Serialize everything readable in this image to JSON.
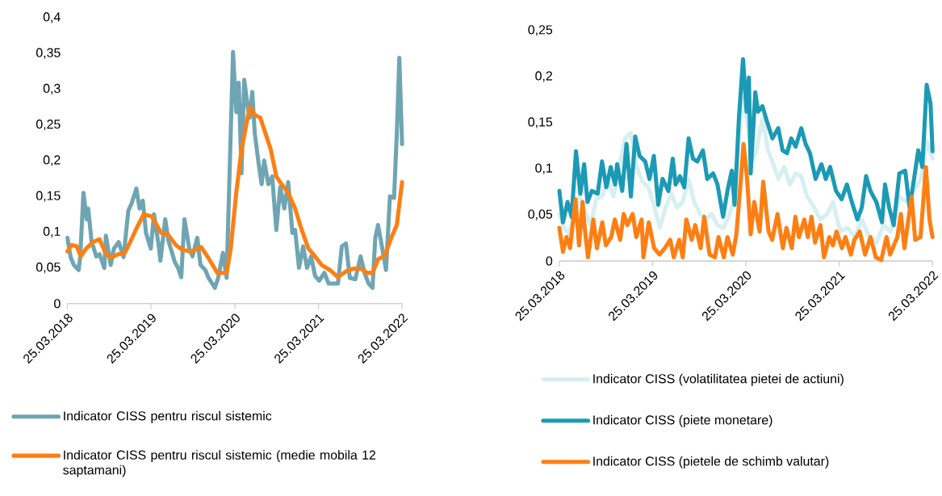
{
  "chart_data": [
    {
      "type": "line",
      "marker": "none",
      "line_style": "solid",
      "legend": "bottom",
      "xlim": [
        "2018-03-25",
        "2022-03-25"
      ],
      "ylim": [
        0,
        0.4
      ],
      "xticks": [
        {
          "value": "2018-03-25",
          "label": "25.03.2018"
        },
        {
          "value": "2019-03-25",
          "label": "25.03.2019"
        },
        {
          "value": "2020-03-25",
          "label": "25.03.2020"
        },
        {
          "value": "2021-03-25",
          "label": "25.03.2021"
        },
        {
          "value": "2022-03-25",
          "label": "25.03.2022"
        }
      ],
      "yticks": [
        {
          "value": 0,
          "label": "0"
        },
        {
          "value": 0.05,
          "label": "0,05"
        },
        {
          "value": 0.1,
          "label": "0,1"
        },
        {
          "value": 0.15,
          "label": "0,15"
        },
        {
          "value": 0.2,
          "label": "0,2"
        },
        {
          "value": 0.25,
          "label": "0,25"
        },
        {
          "value": 0.3,
          "label": "0,3"
        },
        {
          "value": 0.35,
          "label": "0,35"
        },
        {
          "value": 0.4,
          "label": "0,4"
        }
      ],
      "series": [
        {
          "name": "Indicator CISS pentru riscul sistemic",
          "color": "#6fa5b2",
          "x": [
            "2018-03-25",
            "2018-04-08",
            "2018-04-22",
            "2018-05-13",
            "2018-05-20",
            "2018-06-03",
            "2018-06-17",
            "2018-06-24",
            "2018-07-08",
            "2018-07-29",
            "2018-08-12",
            "2018-09-02",
            "2018-09-09",
            "2018-09-30",
            "2018-10-14",
            "2018-11-04",
            "2018-11-25",
            "2018-12-16",
            "2018-12-30",
            "2019-01-20",
            "2019-02-03",
            "2019-02-17",
            "2019-03-03",
            "2019-03-24",
            "2019-04-07",
            "2019-04-28",
            "2019-05-05",
            "2019-05-26",
            "2019-06-09",
            "2019-07-07",
            "2019-07-21",
            "2019-08-04",
            "2019-08-18",
            "2019-09-08",
            "2019-09-22",
            "2019-10-13",
            "2019-10-27",
            "2019-11-17",
            "2019-12-01",
            "2019-12-29",
            "2020-01-12",
            "2020-02-02",
            "2020-02-18",
            "2020-03-17",
            "2020-03-31",
            "2020-04-11",
            "2020-04-23",
            "2020-05-05",
            "2020-05-17",
            "2020-05-28",
            "2020-06-09",
            "2020-06-20",
            "2020-07-08",
            "2020-07-20",
            "2020-07-31",
            "2020-08-18",
            "2020-09-04",
            "2020-09-22",
            "2020-10-09",
            "2020-10-27",
            "2020-11-13",
            "2020-12-01",
            "2020-12-13",
            "2020-12-30",
            "2021-01-17",
            "2021-02-03",
            "2021-02-21",
            "2021-03-10",
            "2021-03-28",
            "2021-04-20",
            "2021-05-08",
            "2021-05-25",
            "2021-06-18",
            "2021-07-05",
            "2021-07-23",
            "2021-08-09",
            "2021-09-02",
            "2021-09-25",
            "2021-10-12",
            "2021-10-30",
            "2021-11-16",
            "2021-11-28",
            "2021-12-10",
            "2021-12-27",
            "2022-01-14",
            "2022-01-31",
            "2022-02-18",
            "2022-03-02",
            "2022-03-13",
            "2022-03-25"
          ],
          "values": [
            0.092,
            0.065,
            0.054,
            0.047,
            0.066,
            0.155,
            0.118,
            0.133,
            0.088,
            0.066,
            0.069,
            0.05,
            0.095,
            0.054,
            0.077,
            0.086,
            0.065,
            0.13,
            0.14,
            0.161,
            0.133,
            0.144,
            0.099,
            0.077,
            0.125,
            0.08,
            0.06,
            0.118,
            0.088,
            0.058,
            0.05,
            0.037,
            0.118,
            0.077,
            0.066,
            0.092,
            0.054,
            0.047,
            0.036,
            0.022,
            0.036,
            0.071,
            0.036,
            0.352,
            0.268,
            0.309,
            0.182,
            0.313,
            0.283,
            0.26,
            0.296,
            0.238,
            0.193,
            0.167,
            0.2,
            0.167,
            0.178,
            0.103,
            0.163,
            0.133,
            0.17,
            0.099,
            0.103,
            0.05,
            0.08,
            0.05,
            0.066,
            0.039,
            0.032,
            0.043,
            0.028,
            0.028,
            0.028,
            0.08,
            0.084,
            0.036,
            0.034,
            0.066,
            0.043,
            0.028,
            0.022,
            0.092,
            0.11,
            0.08,
            0.047,
            0.15,
            0.148,
            0.238,
            0.344,
            0.223
          ]
        },
        {
          "name": "Indicator CISS pentru riscul sistemic (medie mobila 12 saptamani)",
          "color": "#fd7f13",
          "x": [
            "2018-03-25",
            "2018-04-12",
            "2018-05-05",
            "2018-05-22",
            "2018-06-15",
            "2018-07-14",
            "2018-08-12",
            "2018-09-04",
            "2018-09-28",
            "2018-11-02",
            "2018-12-01",
            "2018-12-24",
            "2019-01-17",
            "2019-02-21",
            "2019-03-28",
            "2019-05-08",
            "2019-06-06",
            "2019-07-11",
            "2019-08-09",
            "2019-09-19",
            "2019-10-30",
            "2019-12-04",
            "2020-01-08",
            "2020-02-18",
            "2020-03-07",
            "2020-03-31",
            "2020-04-23",
            "2020-05-17",
            "2020-05-30",
            "2020-06-20",
            "2020-07-14",
            "2020-08-06",
            "2020-08-29",
            "2020-09-22",
            "2020-10-15",
            "2020-11-13",
            "2020-12-13",
            "2021-01-11",
            "2021-02-09",
            "2021-03-10",
            "2021-04-08",
            "2021-05-14",
            "2021-06-18",
            "2021-07-23",
            "2021-08-27",
            "2021-09-25",
            "2021-10-24",
            "2021-11-16",
            "2021-12-10",
            "2022-01-08",
            "2022-02-06",
            "2022-03-02",
            "2022-03-25"
          ],
          "values": [
            0.073,
            0.082,
            0.08,
            0.066,
            0.077,
            0.086,
            0.09,
            0.073,
            0.064,
            0.069,
            0.071,
            0.086,
            0.103,
            0.125,
            0.122,
            0.099,
            0.097,
            0.082,
            0.075,
            0.073,
            0.079,
            0.062,
            0.043,
            0.043,
            0.077,
            0.155,
            0.215,
            0.256,
            0.275,
            0.264,
            0.26,
            0.238,
            0.215,
            0.178,
            0.167,
            0.155,
            0.133,
            0.103,
            0.077,
            0.066,
            0.054,
            0.047,
            0.037,
            0.045,
            0.049,
            0.049,
            0.043,
            0.043,
            0.062,
            0.067,
            0.092,
            0.11,
            0.17
          ]
        }
      ]
    },
    {
      "type": "line",
      "marker": "none",
      "line_style": "solid",
      "legend": "bottom",
      "xlim": [
        "2018-03-25",
        "2022-03-25"
      ],
      "ylim": [
        0,
        0.25
      ],
      "xticks": [
        {
          "value": "2018-03-25",
          "label": "25.03.2018"
        },
        {
          "value": "2019-03-25",
          "label": "25.03.2019"
        },
        {
          "value": "2020-03-25",
          "label": "25.03.2020"
        },
        {
          "value": "2021-03-25",
          "label": "25.03.2021"
        },
        {
          "value": "2022-03-25",
          "label": "25.03.2022"
        }
      ],
      "yticks": [
        {
          "value": 0,
          "label": "0"
        },
        {
          "value": 0.05,
          "label": "0,05"
        },
        {
          "value": 0.1,
          "label": "0,1"
        },
        {
          "value": 0.15,
          "label": "0,15"
        },
        {
          "value": 0.2,
          "label": "0,2"
        },
        {
          "value": 0.25,
          "label": "0,25"
        }
      ],
      "series": [
        {
          "name": "Indicator CISS (volatilitatea pietei de actiuni)",
          "color": "#d6eff1",
          "x": [
            "2018-03-25",
            "2018-04-08",
            "2018-05-01",
            "2018-05-24",
            "2018-06-10",
            "2018-06-27",
            "2018-07-25",
            "2018-08-16",
            "2018-09-08",
            "2018-10-01",
            "2018-10-23",
            "2018-11-15",
            "2018-12-07",
            "2018-12-30",
            "2019-01-22",
            "2019-02-13",
            "2019-03-08",
            "2019-03-30",
            "2019-04-22",
            "2019-05-15",
            "2019-06-06",
            "2019-06-28",
            "2019-07-21",
            "2019-08-13",
            "2019-09-04",
            "2019-09-27",
            "2019-10-20",
            "2019-11-11",
            "2019-12-04",
            "2019-12-26",
            "2020-01-18",
            "2020-02-09",
            "2020-03-03",
            "2020-03-14",
            "2020-04-01",
            "2020-04-18",
            "2020-05-05",
            "2020-05-28",
            "2020-06-19",
            "2020-07-06",
            "2020-07-29",
            "2020-08-21",
            "2020-09-12",
            "2020-10-05",
            "2020-10-27",
            "2020-11-19",
            "2020-12-17",
            "2021-01-09",
            "2021-02-06",
            "2021-02-28",
            "2021-03-29",
            "2021-04-26",
            "2021-05-24",
            "2021-06-21",
            "2021-07-20",
            "2021-08-17",
            "2021-09-14",
            "2021-10-12",
            "2021-11-15",
            "2021-12-13",
            "2022-01-10",
            "2022-02-08",
            "2022-03-02",
            "2022-03-25"
          ],
          "values": [
            0.051,
            0.039,
            0.029,
            0.051,
            0.07,
            0.058,
            0.039,
            0.067,
            0.07,
            0.089,
            0.07,
            0.102,
            0.133,
            0.139,
            0.102,
            0.086,
            0.08,
            0.061,
            0.036,
            0.058,
            0.073,
            0.058,
            0.064,
            0.089,
            0.064,
            0.051,
            0.045,
            0.051,
            0.039,
            0.036,
            0.048,
            0.07,
            0.152,
            0.177,
            0.146,
            0.108,
            0.12,
            0.155,
            0.12,
            0.108,
            0.089,
            0.102,
            0.083,
            0.095,
            0.092,
            0.07,
            0.058,
            0.045,
            0.051,
            0.064,
            0.032,
            0.036,
            0.026,
            0.045,
            0.026,
            0.02,
            0.039,
            0.032,
            0.07,
            0.064,
            0.076,
            0.089,
            0.13,
            0.111
          ]
        },
        {
          "name": "Indicator CISS (piete monetare)",
          "color": "#1b9ab5",
          "x": [
            "2018-03-25",
            "2018-04-08",
            "2018-04-26",
            "2018-05-12",
            "2018-05-29",
            "2018-06-15",
            "2018-06-30",
            "2018-07-13",
            "2018-07-30",
            "2018-08-22",
            "2018-09-08",
            "2018-09-25",
            "2018-10-12",
            "2018-10-29",
            "2018-11-06",
            "2018-11-26",
            "2018-12-13",
            "2018-12-30",
            "2019-01-16",
            "2019-02-02",
            "2019-02-24",
            "2019-03-13",
            "2019-03-30",
            "2019-04-16",
            "2019-05-03",
            "2019-05-26",
            "2019-06-12",
            "2019-06-23",
            "2019-07-10",
            "2019-07-27",
            "2019-08-13",
            "2019-08-30",
            "2019-09-16",
            "2019-10-08",
            "2019-10-25",
            "2019-11-17",
            "2019-12-04",
            "2019-12-26",
            "2020-01-12",
            "2020-01-29",
            "2020-02-09",
            "2020-02-26",
            "2020-03-13",
            "2020-03-27",
            "2020-04-05",
            "2020-04-12",
            "2020-04-30",
            "2020-05-11",
            "2020-05-28",
            "2020-06-14",
            "2020-07-06",
            "2020-07-29",
            "2020-08-15",
            "2020-09-01",
            "2020-09-18",
            "2020-10-05",
            "2020-10-27",
            "2020-11-13",
            "2020-11-30",
            "2020-12-22",
            "2021-01-14",
            "2021-01-31",
            "2021-02-17",
            "2021-03-12",
            "2021-04-03",
            "2021-04-24",
            "2021-05-13",
            "2021-06-04",
            "2021-06-21",
            "2021-07-08",
            "2021-07-25",
            "2021-08-17",
            "2021-09-08",
            "2021-09-20",
            "2021-10-06",
            "2021-10-24",
            "2021-11-15",
            "2021-12-08",
            "2021-12-25",
            "2022-01-10",
            "2022-01-28",
            "2022-02-13",
            "2022-03-02",
            "2022-03-17",
            "2022-03-25"
          ],
          "values": [
            0.076,
            0.042,
            0.064,
            0.048,
            0.119,
            0.073,
            0.105,
            0.064,
            0.076,
            0.073,
            0.108,
            0.08,
            0.102,
            0.083,
            0.105,
            0.076,
            0.127,
            0.07,
            0.135,
            0.114,
            0.108,
            0.089,
            0.114,
            0.061,
            0.089,
            0.076,
            0.111,
            0.083,
            0.092,
            0.08,
            0.133,
            0.111,
            0.108,
            0.12,
            0.089,
            0.095,
            0.083,
            0.048,
            0.076,
            0.098,
            0.061,
            0.155,
            0.219,
            0.162,
            0.199,
            0.095,
            0.183,
            0.162,
            0.168,
            0.152,
            0.133,
            0.144,
            0.12,
            0.117,
            0.133,
            0.124,
            0.144,
            0.127,
            0.117,
            0.089,
            0.105,
            0.089,
            0.102,
            0.076,
            0.067,
            0.083,
            0.064,
            0.045,
            0.058,
            0.092,
            0.076,
            0.064,
            0.042,
            0.083,
            0.058,
            0.039,
            0.095,
            0.098,
            0.058,
            0.086,
            0.12,
            0.102,
            0.191,
            0.171,
            0.119
          ]
        },
        {
          "name": "Indicator CISS (pietele de schimb valutar)",
          "color": "#fd7f13",
          "x": [
            "2018-03-25",
            "2018-04-08",
            "2018-04-22",
            "2018-05-06",
            "2018-05-27",
            "2018-06-10",
            "2018-06-24",
            "2018-07-01",
            "2018-07-15",
            "2018-08-05",
            "2018-08-19",
            "2018-09-09",
            "2018-09-23",
            "2018-10-14",
            "2018-10-28",
            "2018-11-18",
            "2018-12-02",
            "2018-12-16",
            "2019-01-06",
            "2019-01-20",
            "2019-02-10",
            "2019-02-17",
            "2019-03-10",
            "2019-03-31",
            "2019-04-21",
            "2019-05-12",
            "2019-06-02",
            "2019-06-16",
            "2019-07-07",
            "2019-07-21",
            "2019-08-04",
            "2019-08-25",
            "2019-09-08",
            "2019-09-29",
            "2019-10-13",
            "2019-11-03",
            "2019-11-24",
            "2019-12-08",
            "2019-12-29",
            "2020-01-12",
            "2020-02-02",
            "2020-02-16",
            "2020-03-01",
            "2020-03-15",
            "2020-03-29",
            "2020-04-12",
            "2020-04-26",
            "2020-05-17",
            "2020-05-31",
            "2020-06-21",
            "2020-07-05",
            "2020-07-26",
            "2020-08-16",
            "2020-08-30",
            "2020-09-20",
            "2020-10-04",
            "2020-10-18",
            "2020-11-08",
            "2020-11-22",
            "2020-12-06",
            "2020-12-20",
            "2021-01-10",
            "2021-01-24",
            "2021-02-14",
            "2021-02-28",
            "2021-03-14",
            "2021-04-04",
            "2021-04-18",
            "2021-05-09",
            "2021-05-23",
            "2021-06-13",
            "2021-07-04",
            "2021-07-25",
            "2021-08-15",
            "2021-09-05",
            "2021-09-26",
            "2021-10-10",
            "2021-11-07",
            "2021-11-21",
            "2021-12-05",
            "2022-01-02",
            "2022-01-16",
            "2022-02-06",
            "2022-02-27",
            "2022-03-13",
            "2022-03-25"
          ],
          "values": [
            0.036,
            0.01,
            0.026,
            0.014,
            0.067,
            0.017,
            0.064,
            0.039,
            0.004,
            0.045,
            0.014,
            0.042,
            0.017,
            0.026,
            0.045,
            0.023,
            0.051,
            0.039,
            0.051,
            0.026,
            0.045,
            0.004,
            0.042,
            0.014,
            0.007,
            0.014,
            0.023,
            0.004,
            0.023,
            0.004,
            0.045,
            0.023,
            0.039,
            0.014,
            0.048,
            0.007,
            0.004,
            0.026,
            0.004,
            0.026,
            0.007,
            0.029,
            0.076,
            0.127,
            0.089,
            0.029,
            0.064,
            0.032,
            0.086,
            0.032,
            0.023,
            0.051,
            0.014,
            0.036,
            0.014,
            0.048,
            0.026,
            0.045,
            0.026,
            0.048,
            0.02,
            0.039,
            0.004,
            0.026,
            0.017,
            0.032,
            0.014,
            0.026,
            0.007,
            0.023,
            0.032,
            0.007,
            0.026,
            0.004,
            0.001,
            0.026,
            0.007,
            0.026,
            0.051,
            0.014,
            0.07,
            0.023,
            0.026,
            0.102,
            0.045,
            0.026
          ]
        }
      ]
    }
  ]
}
